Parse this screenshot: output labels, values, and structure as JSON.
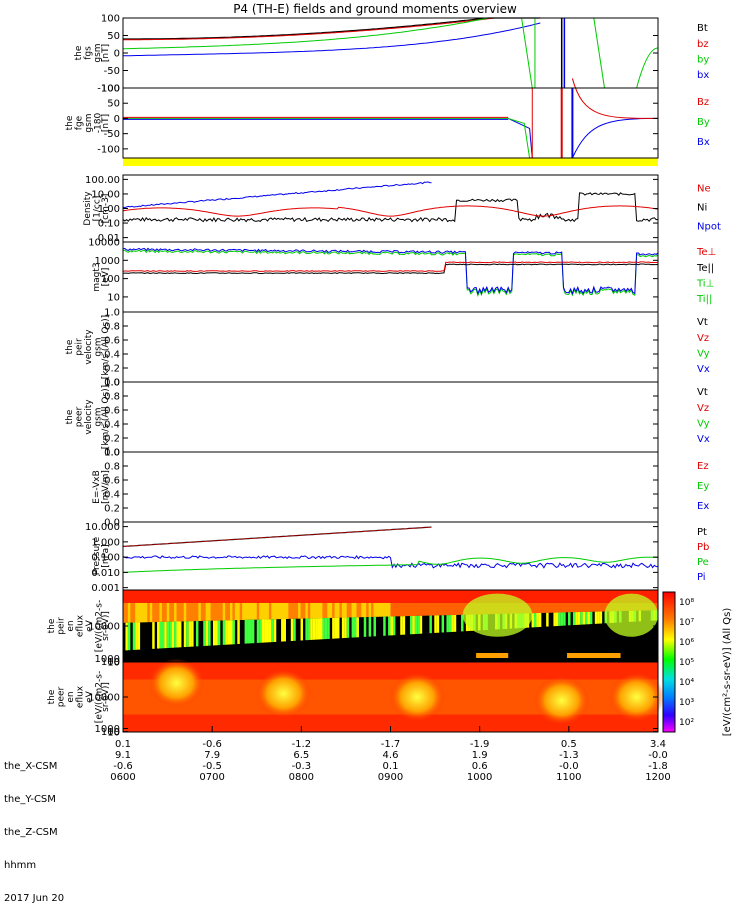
{
  "title": "P4 (TH-E) fields and ground moments overview",
  "colors": {
    "black": "#000000",
    "red": "#e00000",
    "green": "#00cc00",
    "blue": "#0000ee",
    "yellow": "#ffff00"
  },
  "chart_data": [
    {
      "id": "fgs",
      "type": "line",
      "ylabel": [
        "the",
        "fgs",
        "gsm",
        "[nT]"
      ],
      "ylim": [
        -100,
        100
      ],
      "yticks": [
        "100",
        "50",
        "0",
        "-50",
        "-100"
      ],
      "tick_values": [
        100,
        50,
        0,
        -50,
        -100
      ],
      "legend": [
        {
          "name": "Bt",
          "color": "black"
        },
        {
          "name": "bz",
          "color": "red"
        },
        {
          "name": "by",
          "color": "green"
        },
        {
          "name": "bx",
          "color": "blue"
        }
      ]
    },
    {
      "id": "fge",
      "type": "line",
      "ylabel": [
        "the",
        "fge",
        "gsm",
        "-180",
        "[nT]"
      ],
      "ylim": [
        -130,
        100
      ],
      "yticks": [
        "100",
        "50",
        "0",
        "-50",
        "-100"
      ],
      "tick_values": [
        100,
        50,
        0,
        -50,
        -100
      ],
      "legend": [
        {
          "name": "Bz",
          "color": "red"
        },
        {
          "name": "By",
          "color": "green"
        },
        {
          "name": "Bx",
          "color": "blue"
        }
      ]
    },
    {
      "id": "density",
      "type": "line",
      "log": true,
      "ylabel": [
        "Density",
        "[1/cc]",
        "[cm-3]"
      ],
      "ylim": [
        0.005,
        200
      ],
      "yticks": [
        "100.00",
        "10.00",
        "1.00",
        "0.10",
        "0.01"
      ],
      "tick_values": [
        100,
        10,
        1,
        0.1,
        0.01
      ],
      "legend": [
        {
          "name": "Ne",
          "color": "red"
        },
        {
          "name": "Ni",
          "color": "black"
        },
        {
          "name": "Npot",
          "color": "blue"
        }
      ]
    },
    {
      "id": "temp",
      "type": "line",
      "log": true,
      "ylabel": [
        "magt3",
        "[eV]"
      ],
      "ylim": [
        1.5,
        10000
      ],
      "yticks": [
        "10000",
        "1000",
        "100",
        "10"
      ],
      "tick_values": [
        10000,
        1000,
        100,
        10
      ],
      "legend": [
        {
          "name": "Te⊥",
          "color": "red"
        },
        {
          "name": "Te||",
          "color": "black"
        },
        {
          "name": "Ti⊥",
          "color": "green"
        },
        {
          "name": "Ti||",
          "color": "green"
        }
      ]
    },
    {
      "id": "peirv",
      "type": "line",
      "ylabel": [
        "the",
        "peir",
        "velocity",
        "gsm",
        "[km/s (All Qs)]"
      ],
      "ylim": [
        0,
        1
      ],
      "yticks": [
        "1.0",
        "0.8",
        "0.6",
        "0.4",
        "0.2",
        "0.0"
      ],
      "tick_values": [
        1,
        0.8,
        0.6,
        0.4,
        0.2,
        0
      ],
      "legend": [
        {
          "name": "Vt",
          "color": "black"
        },
        {
          "name": "Vz",
          "color": "red"
        },
        {
          "name": "Vy",
          "color": "green"
        },
        {
          "name": "Vx",
          "color": "blue"
        }
      ]
    },
    {
      "id": "peerv",
      "type": "line",
      "ylabel": [
        "the",
        "peer",
        "velocity",
        "gsm",
        "[km/s (All Qs)]"
      ],
      "ylim": [
        0,
        1
      ],
      "yticks": [
        "1.0",
        "0.8",
        "0.6",
        "0.4",
        "0.2",
        "0.0"
      ],
      "tick_values": [
        1,
        0.8,
        0.6,
        0.4,
        0.2,
        0
      ],
      "legend": [
        {
          "name": "Vt",
          "color": "black"
        },
        {
          "name": "Vz",
          "color": "red"
        },
        {
          "name": "Vy",
          "color": "green"
        },
        {
          "name": "Vx",
          "color": "blue"
        }
      ]
    },
    {
      "id": "efield",
      "type": "line",
      "ylabel": [
        "E=-VxB",
        "[mV/m]"
      ],
      "ylim": [
        0,
        1
      ],
      "yticks": [
        "1.0",
        "0.8",
        "0.6",
        "0.4",
        "0.2",
        "0.0"
      ],
      "tick_values": [
        1,
        0.8,
        0.6,
        0.4,
        0.2,
        0
      ],
      "legend": [
        {
          "name": "Ez",
          "color": "red"
        },
        {
          "name": "Ey",
          "color": "green"
        },
        {
          "name": "Ex",
          "color": "blue"
        }
      ]
    },
    {
      "id": "pressure",
      "type": "line",
      "log": true,
      "ylabel": [
        "Pressure",
        "[nPa]"
      ],
      "ylim": [
        0.0007,
        20
      ],
      "yticks": [
        "10.000",
        "1.000",
        "0.100",
        "0.010",
        "0.001"
      ],
      "tick_values": [
        10,
        1,
        0.1,
        0.01,
        0.001
      ],
      "legend": [
        {
          "name": "Pt",
          "color": "black"
        },
        {
          "name": "Pb",
          "color": "red"
        },
        {
          "name": "Pe",
          "color": "green"
        },
        {
          "name": "Pi",
          "color": "blue"
        }
      ]
    },
    {
      "id": "peir_spec",
      "type": "heatmap",
      "ylabel": [
        "the",
        "peir",
        "en",
        "eflux",
        "eV",
        "[eV/(cm2-s-",
        "sr-eV)]"
      ],
      "ylim": [
        5,
        20000
      ],
      "yticks": [
        "10000",
        "1000",
        "100",
        "10"
      ],
      "tick_values": [
        10000,
        1000,
        100,
        10
      ]
    },
    {
      "id": "peer_spec",
      "type": "heatmap",
      "ylabel": [
        "the",
        "peer",
        "en",
        "eflux",
        "eV",
        "[eV/(cm2-s-",
        "sr-eV)]"
      ],
      "ylim": [
        5,
        20000
      ],
      "yticks": [
        "10000",
        "1000",
        "100",
        "10"
      ],
      "tick_values": [
        10000,
        1000,
        100,
        10
      ]
    }
  ],
  "colorbar": {
    "ticks": [
      "10⁸",
      "10⁷",
      "10⁶",
      "10⁵",
      "10⁴",
      "10³",
      "10²"
    ],
    "label": "[eV/(cm²-s-sr-eV)] (All Qs)"
  },
  "x_axis": {
    "row_labels": [
      "the_X-CSM",
      "the_Y-CSM",
      "the_Z-CSM",
      "hhmm",
      "2017 Jun 20"
    ],
    "columns": [
      {
        "x": "0.1",
        "y": "9.1",
        "z": "-0.6",
        "hhmm": "0600"
      },
      {
        "x": "-0.6",
        "y": "7.9",
        "z": "-0.5",
        "hhmm": "0700"
      },
      {
        "x": "-1.2",
        "y": "6.5",
        "z": "-0.3",
        "hhmm": "0800"
      },
      {
        "x": "-1.7",
        "y": "4.6",
        "z": "0.1",
        "hhmm": "0900"
      },
      {
        "x": "-1.9",
        "y": "1.9",
        "z": "0.6",
        "hhmm": "1000"
      },
      {
        "x": "0.5",
        "y": "-1.3",
        "z": "-0.0",
        "hhmm": "1100"
      },
      {
        "x": "3.4",
        "y": "-0.0",
        "z": "-1.8",
        "hhmm": "1200"
      }
    ]
  }
}
